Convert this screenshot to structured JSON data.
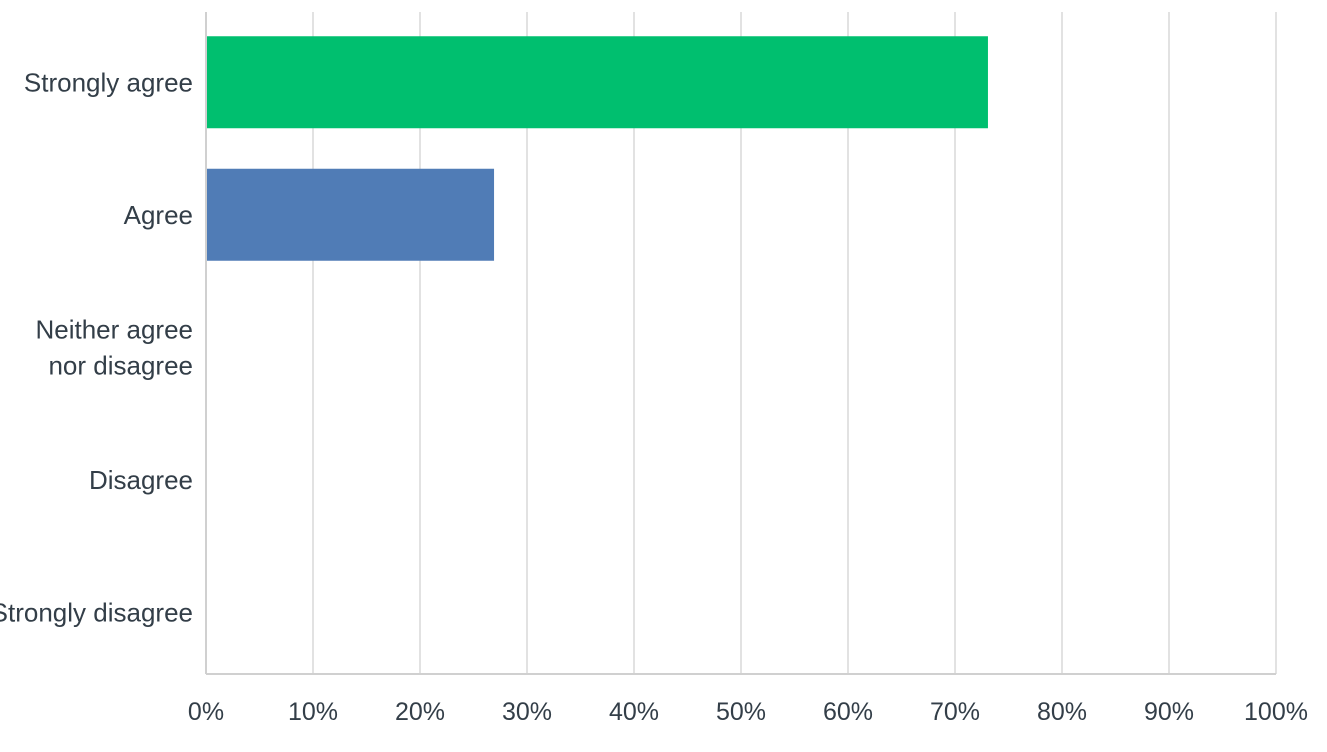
{
  "chart_data": {
    "type": "bar",
    "orientation": "horizontal",
    "categories": [
      "Strongly agree",
      "Agree",
      "Neither agree nor disagree",
      "Disagree",
      "Strongly disagree"
    ],
    "category_lines": [
      [
        "Strongly agree"
      ],
      [
        "Agree"
      ],
      [
        "Neither agree",
        "nor disagree"
      ],
      [
        "Disagree"
      ],
      [
        "Strongly disagree"
      ]
    ],
    "values": [
      73.08,
      26.92,
      0,
      0,
      0
    ],
    "colors": [
      "#00bf6f",
      "#507cb6",
      "#6bc8cd",
      "#f05b24",
      "#f9be00"
    ],
    "xlim": [
      0,
      100
    ],
    "xticks": [
      0,
      10,
      20,
      30,
      40,
      50,
      60,
      70,
      80,
      90,
      100
    ],
    "xtick_labels": [
      "0%",
      "10%",
      "20%",
      "30%",
      "40%",
      "50%",
      "60%",
      "70%",
      "80%",
      "90%",
      "100%"
    ],
    "grid": true,
    "legend": "none",
    "title": "",
    "xlabel": "",
    "ylabel": ""
  }
}
